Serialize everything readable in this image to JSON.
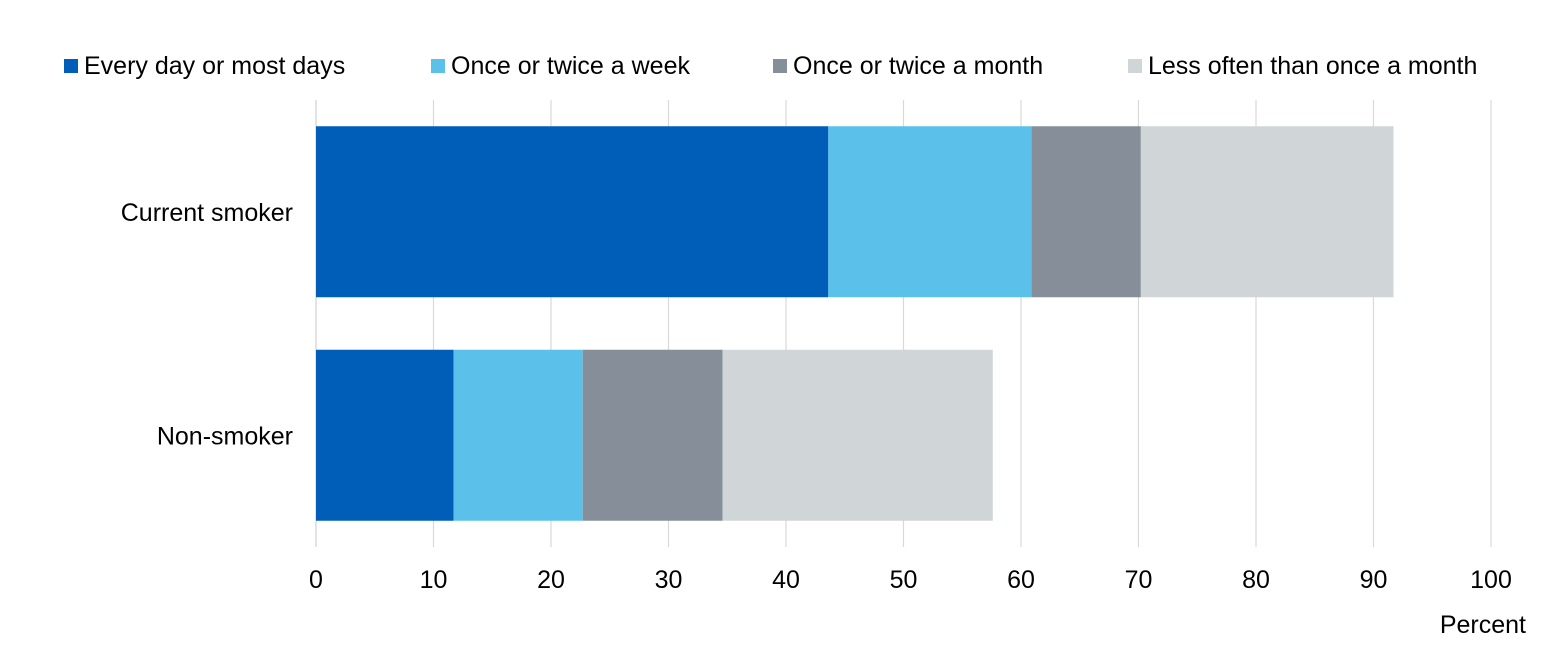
{
  "chart_data": {
    "type": "bar",
    "orientation": "horizontal",
    "stacked": true,
    "categories": [
      "Current smoker",
      "Non-smoker"
    ],
    "series": [
      {
        "name": "Every day or most days",
        "color": "#005EB8",
        "values": [
          43.6,
          11.7
        ]
      },
      {
        "name": "Once or twice a week",
        "color": "#5BC0EA",
        "values": [
          17.3,
          11.0
        ]
      },
      {
        "name": "Once or twice a month",
        "color": "#868F99",
        "values": [
          9.3,
          11.9
        ]
      },
      {
        "name": "Less often than once a month",
        "color": "#D0D6D7",
        "values": [
          21.5,
          23.0
        ]
      }
    ],
    "xlabel": "Percent",
    "ylabel": "",
    "xlim": [
      0,
      100
    ],
    "xticks": [
      0,
      10,
      20,
      30,
      40,
      50,
      60,
      70,
      80,
      90,
      100
    ],
    "grid": true,
    "legend_position": "top"
  }
}
